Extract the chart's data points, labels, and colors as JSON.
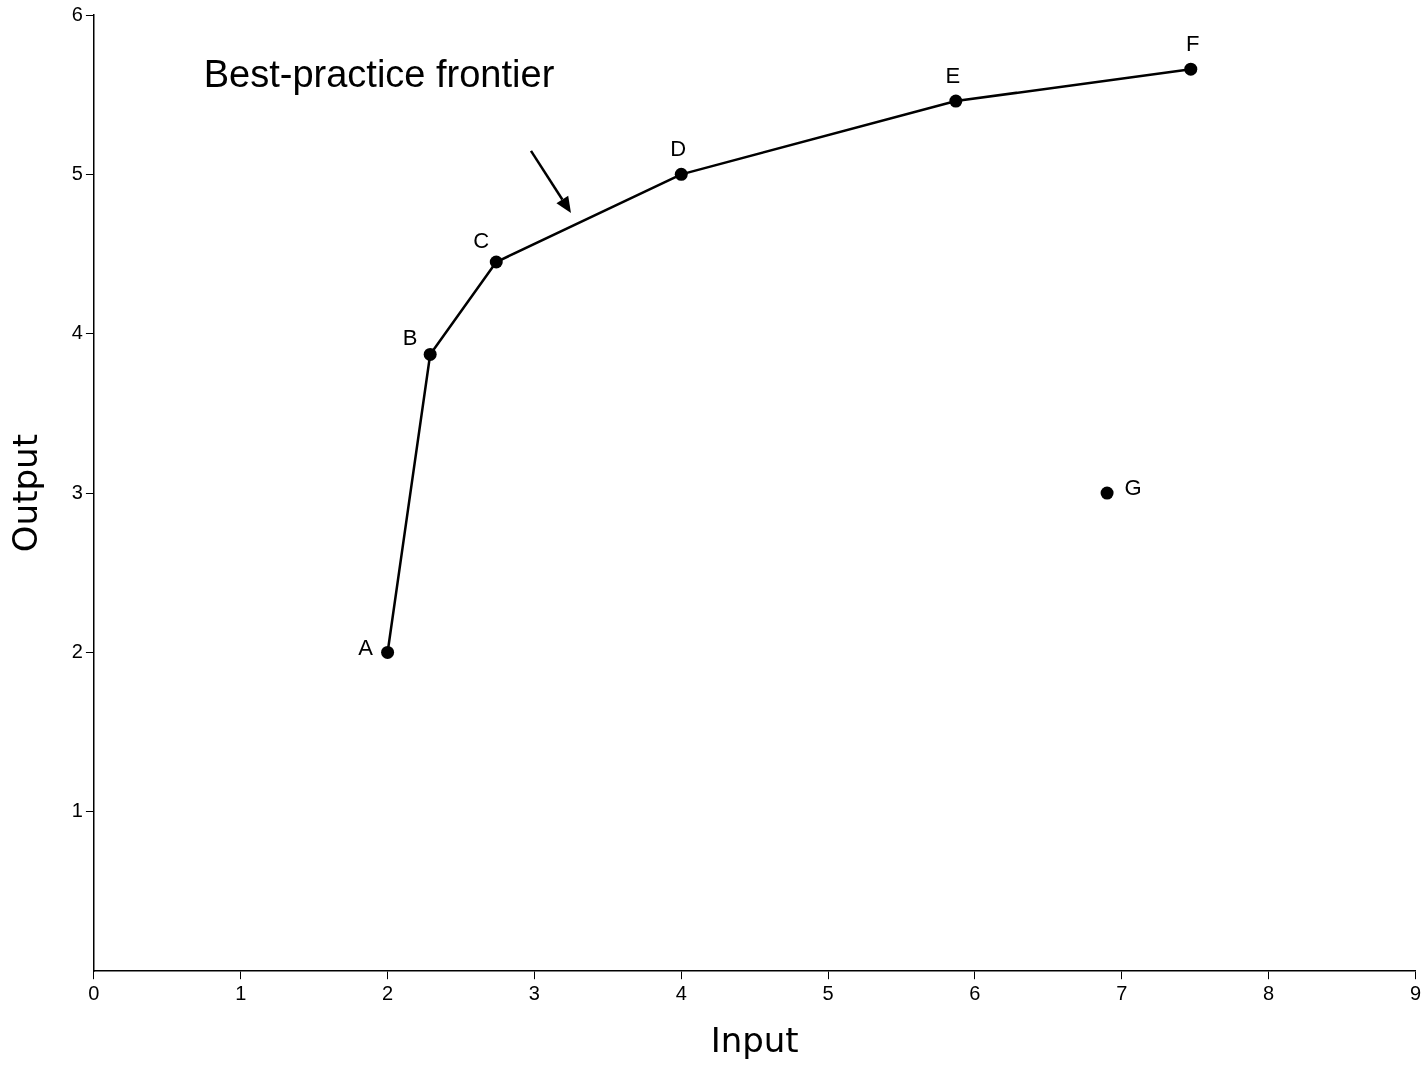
{
  "chart_data": {
    "type": "line",
    "xlabel": "Input",
    "ylabel": "Output",
    "xlim": [
      0,
      9
    ],
    "xticks": [
      0,
      1,
      2,
      3,
      4,
      5,
      6,
      7,
      8,
      9
    ],
    "ylim": [
      0,
      6
    ],
    "yticks": [
      1,
      2,
      3,
      4,
      5,
      6
    ],
    "grid": false,
    "legend": false,
    "marker": "circle",
    "line_style": "solid",
    "series": [
      {
        "x": [
          2.0,
          2.29,
          2.74,
          4.0,
          5.87,
          7.47
        ],
        "values": [
          2.0,
          3.87,
          4.45,
          5.0,
          5.46,
          5.66
        ],
        "color": "#000000"
      },
      {
        "type": "scatter",
        "x": [
          6.9
        ],
        "values": [
          3.0
        ],
        "color": "#000000"
      }
    ],
    "annotations": [
      "Best-practice frontier",
      {
        "text": "A",
        "x": 2.0,
        "y": 2.0
      },
      {
        "text": "B",
        "x": 2.29,
        "y": 3.87
      },
      {
        "text": "C",
        "x": 2.74,
        "y": 4.45
      },
      {
        "text": "D",
        "x": 4.0,
        "y": 5.0
      },
      {
        "text": "E",
        "x": 5.87,
        "y": 5.46
      },
      {
        "text": "F",
        "x": 7.47,
        "y": 5.66
      },
      {
        "text": "G",
        "x": 6.9,
        "y": 3.0
      }
    ]
  }
}
